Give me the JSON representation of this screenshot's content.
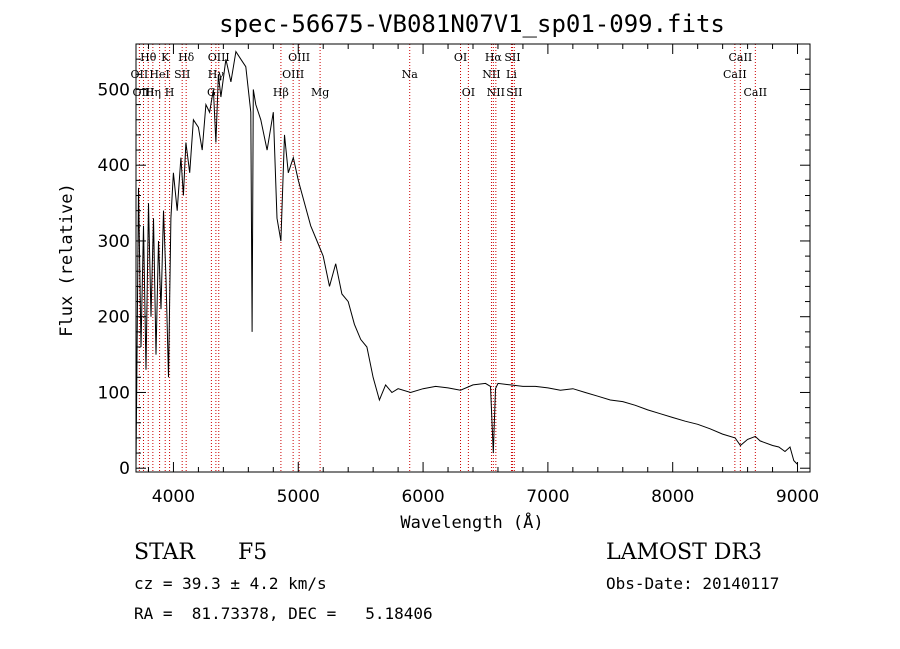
{
  "chart_data": {
    "type": "line",
    "title": "spec-56675-VB081N07V1_sp01-099.fits",
    "xlabel": "Wavelength (Å)",
    "ylabel": "Flux (relative)",
    "xlim": [
      3700,
      9100
    ],
    "ylim": [
      -5,
      560
    ],
    "xticks": [
      4000,
      5000,
      6000,
      7000,
      8000,
      9000
    ],
    "yticks": [
      0,
      100,
      200,
      300,
      400,
      500
    ],
    "series": [
      {
        "name": "flux",
        "x": [
          3700,
          3720,
          3740,
          3760,
          3780,
          3800,
          3820,
          3840,
          3860,
          3880,
          3900,
          3920,
          3940,
          3960,
          3980,
          4000,
          4030,
          4060,
          4080,
          4100,
          4130,
          4160,
          4200,
          4230,
          4260,
          4290,
          4320,
          4340,
          4360,
          4380,
          4420,
          4460,
          4500,
          4540,
          4580,
          4620,
          4630,
          4640,
          4660,
          4700,
          4750,
          4800,
          4830,
          4861,
          4890,
          4920,
          4960,
          5000,
          5050,
          5100,
          5150,
          5200,
          5250,
          5300,
          5350,
          5400,
          5450,
          5500,
          5550,
          5600,
          5650,
          5700,
          5750,
          5800,
          5900,
          6000,
          6100,
          6200,
          6300,
          6400,
          6500,
          6540,
          6563,
          6580,
          6600,
          6700,
          6800,
          6900,
          7000,
          7100,
          7200,
          7300,
          7400,
          7500,
          7600,
          7700,
          7800,
          7900,
          8000,
          8100,
          8200,
          8300,
          8400,
          8500,
          8542,
          8600,
          8662,
          8700,
          8800,
          8850,
          8900,
          8940,
          8970,
          9000
        ],
        "y": [
          0,
          370,
          160,
          320,
          130,
          350,
          200,
          330,
          150,
          300,
          210,
          340,
          250,
          120,
          330,
          390,
          340,
          410,
          360,
          430,
          390,
          460,
          450,
          420,
          480,
          470,
          500,
          430,
          520,
          490,
          540,
          510,
          550,
          540,
          530,
          470,
          180,
          500,
          480,
          460,
          420,
          470,
          330,
          300,
          440,
          390,
          410,
          380,
          350,
          320,
          300,
          280,
          240,
          270,
          230,
          220,
          190,
          170,
          160,
          120,
          90,
          110,
          100,
          105,
          100,
          105,
          108,
          106,
          103,
          110,
          112,
          108,
          20,
          105,
          112,
          110,
          108,
          108,
          106,
          103,
          105,
          100,
          95,
          90,
          88,
          83,
          77,
          72,
          67,
          62,
          58,
          52,
          45,
          40,
          30,
          38,
          42,
          36,
          30,
          28,
          22,
          28,
          10,
          5
        ]
      }
    ],
    "lines": [
      {
        "name": "Hθ",
        "wl": 3798,
        "row": 1
      },
      {
        "name": "OII",
        "wl": 3727,
        "row": 2
      },
      {
        "name": "OIII",
        "wl": 3760,
        "row": 3
      },
      {
        "name": "Hη",
        "wl": 3835,
        "row": 3
      },
      {
        "name": "K",
        "wl": 3934,
        "row": 1
      },
      {
        "name": "HeI",
        "wl": 3889,
        "row": 2
      },
      {
        "name": "H",
        "wl": 3969,
        "row": 3
      },
      {
        "name": "SII",
        "wl": 4070,
        "row": 2
      },
      {
        "name": "Hδ",
        "wl": 4102,
        "row": 1
      },
      {
        "name": "OIII",
        "wl": 4363,
        "row": 1
      },
      {
        "name": "Hγ",
        "wl": 4340,
        "row": 2
      },
      {
        "name": "G",
        "wl": 4304,
        "row": 3
      },
      {
        "name": "Hβ",
        "wl": 4861,
        "row": 3
      },
      {
        "name": "OIII",
        "wl": 5007,
        "row": 1
      },
      {
        "name": "OIII",
        "wl": 4959,
        "row": 2
      },
      {
        "name": "Mg",
        "wl": 5175,
        "row": 3
      },
      {
        "name": "Na",
        "wl": 5893,
        "row": 2
      },
      {
        "name": "OI",
        "wl": 6300,
        "row": 1
      },
      {
        "name": "OI",
        "wl": 6363,
        "row": 3
      },
      {
        "name": "Hα",
        "wl": 6563,
        "row": 1
      },
      {
        "name": "NII",
        "wl": 6548,
        "row": 2
      },
      {
        "name": "NII",
        "wl": 6583,
        "row": 3
      },
      {
        "name": "SII",
        "wl": 6716,
        "row": 1
      },
      {
        "name": "Li",
        "wl": 6708,
        "row": 2
      },
      {
        "name": "SII",
        "wl": 6731,
        "row": 3
      },
      {
        "name": "CaII",
        "wl": 8542,
        "row": 1
      },
      {
        "name": "CaII",
        "wl": 8498,
        "row": 2
      },
      {
        "name": "CaII",
        "wl": 8662,
        "row": 3
      }
    ],
    "line_color": "#cc0000",
    "spectrum_color": "#000000"
  },
  "info": {
    "class_label": "STAR",
    "subclass": "F5",
    "survey": "LAMOST DR3",
    "cz": "cz = 39.3 ± 4.2 km/s",
    "obs_date": "Obs-Date: 20140117",
    "coords": "RA =  81.73378, DEC =   5.18406"
  }
}
